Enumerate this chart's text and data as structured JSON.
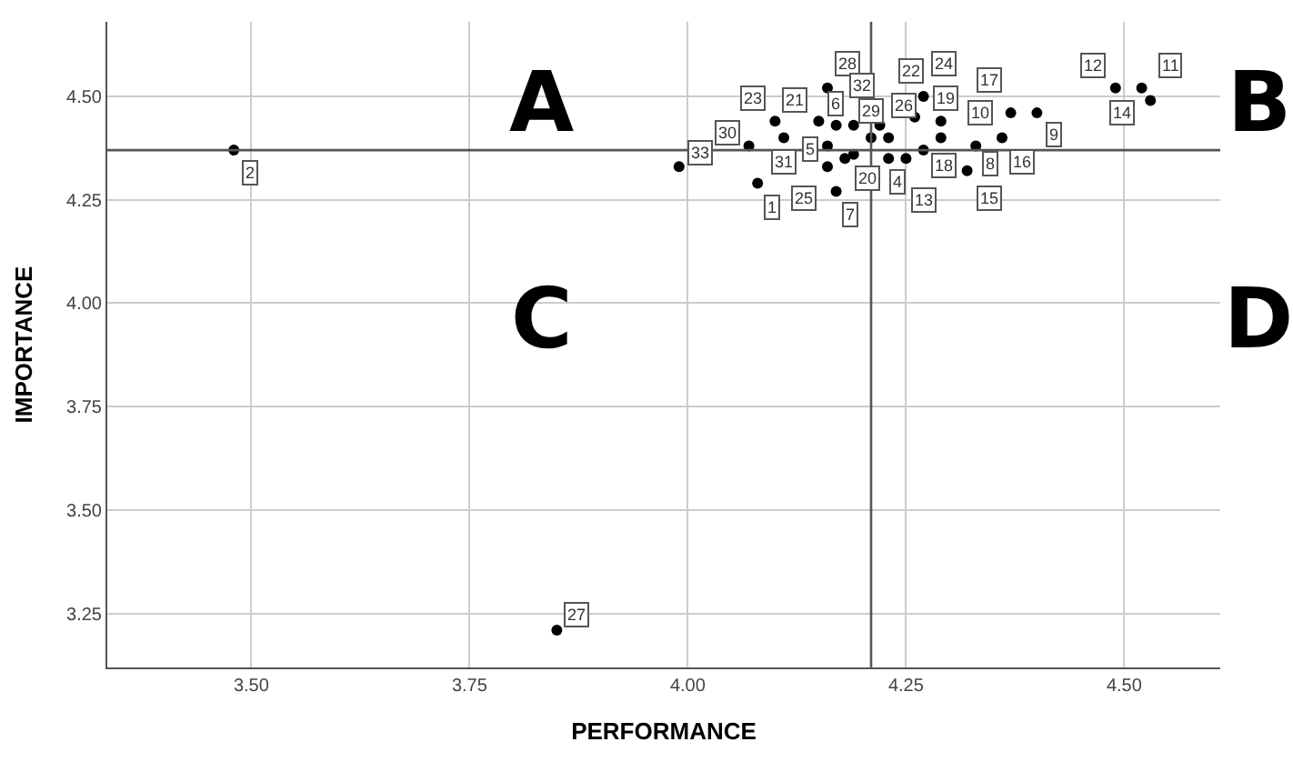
{
  "chart_data": {
    "type": "scatter",
    "xlabel": "PERFORMANCE",
    "ylabel": "IMPORTANCE",
    "x": [
      3.48,
      3.85,
      3.99,
      4.08,
      4.07,
      4.1,
      4.11,
      4.15,
      4.16,
      4.17,
      4.16,
      4.16,
      4.17,
      4.18,
      4.19,
      4.19,
      4.21,
      4.22,
      4.23,
      4.23,
      4.25,
      4.26,
      4.27,
      4.27,
      4.29,
      4.29,
      4.37,
      4.4,
      4.33,
      4.36,
      4.32,
      4.49,
      4.52,
      4.53
    ],
    "series": [
      {
        "color": "#000000",
        "values": [
          4.37,
          3.21,
          4.33,
          4.29,
          4.38,
          4.44,
          4.4,
          4.44,
          4.52,
          4.43,
          4.38,
          4.33,
          4.27,
          4.35,
          4.43,
          4.36,
          4.4,
          4.43,
          4.4,
          4.35,
          4.35,
          4.45,
          4.5,
          4.37,
          4.44,
          4.4,
          4.46,
          4.46,
          4.38,
          4.4,
          4.32,
          4.52,
          4.52,
          4.49
        ]
      }
    ],
    "marker": "circle",
    "xlim": [
      3.335,
      4.61
    ],
    "ylim": [
      3.12,
      4.68
    ],
    "xticks": [
      {
        "value": 3.5,
        "label": "3.50"
      },
      {
        "value": 3.75,
        "label": "3.75"
      },
      {
        "value": 4.0,
        "label": "4.00"
      },
      {
        "value": 4.25,
        "label": "4.25"
      },
      {
        "value": 4.5,
        "label": "4.50"
      }
    ],
    "yticks": [
      {
        "value": 3.25,
        "label": "3.25"
      },
      {
        "value": 3.5,
        "label": "3.50"
      },
      {
        "value": 3.75,
        "label": "3.75"
      },
      {
        "value": 4.0,
        "label": "4.00"
      },
      {
        "value": 4.25,
        "label": "4.25"
      },
      {
        "value": 4.5,
        "label": "4.50"
      }
    ],
    "grid": true,
    "ref_lines": [
      {
        "axis": "y",
        "value": 4.37,
        "color": "#555555"
      },
      {
        "axis": "x",
        "value": 4.21,
        "color": "#555555"
      }
    ],
    "annotations": [
      "A",
      "B",
      "C",
      "D",
      {
        "text": "2",
        "x": 3.48,
        "y": 4.37
      },
      {
        "text": "27",
        "x": 3.85,
        "y": 3.21
      },
      {
        "text": "33",
        "x": 3.99,
        "y": 4.33
      },
      {
        "text": "1",
        "x": 4.08,
        "y": 4.29
      },
      {
        "text": "30",
        "x": 4.07,
        "y": 4.38
      },
      {
        "text": "23",
        "x": 4.1,
        "y": 4.44
      },
      {
        "text": "31",
        "x": 4.11,
        "y": 4.4
      },
      {
        "text": "21",
        "x": 4.15,
        "y": 4.44
      },
      {
        "text": "28",
        "x": 4.16,
        "y": 4.52
      },
      {
        "text": "6",
        "x": 4.17,
        "y": 4.43
      },
      {
        "text": "5",
        "x": 4.16,
        "y": 4.38
      },
      {
        "text": "25",
        "x": 4.16,
        "y": 4.33
      },
      {
        "text": "7",
        "x": 4.17,
        "y": 4.27
      },
      {
        "text": "32",
        "x": 4.19,
        "y": 4.43
      },
      {
        "text": "20",
        "x": 4.19,
        "y": 4.36
      },
      {
        "text": "29",
        "x": 4.21,
        "y": 4.4
      },
      {
        "text": "26",
        "x": 4.22,
        "y": 4.43
      },
      {
        "text": "4",
        "x": 4.23,
        "y": 4.35
      },
      {
        "text": "13",
        "x": 4.25,
        "y": 4.35
      },
      {
        "text": "22",
        "x": 4.26,
        "y": 4.45
      },
      {
        "text": "24",
        "x": 4.27,
        "y": 4.5
      },
      {
        "text": "18",
        "x": 4.27,
        "y": 4.37
      },
      {
        "text": "19",
        "x": 4.29,
        "y": 4.44
      },
      {
        "text": "10",
        "x": 4.29,
        "y": 4.4
      },
      {
        "text": "17",
        "x": 4.37,
        "y": 4.46
      },
      {
        "text": "9",
        "x": 4.4,
        "y": 4.46
      },
      {
        "text": "8",
        "x": 4.33,
        "y": 4.38
      },
      {
        "text": "16",
        "x": 4.36,
        "y": 4.4
      },
      {
        "text": "15",
        "x": 4.32,
        "y": 4.32
      },
      {
        "text": "12",
        "x": 4.49,
        "y": 4.52
      },
      {
        "text": "11",
        "x": 4.52,
        "y": 4.52
      },
      {
        "text": "14",
        "x": 4.53,
        "y": 4.49
      }
    ]
  }
}
